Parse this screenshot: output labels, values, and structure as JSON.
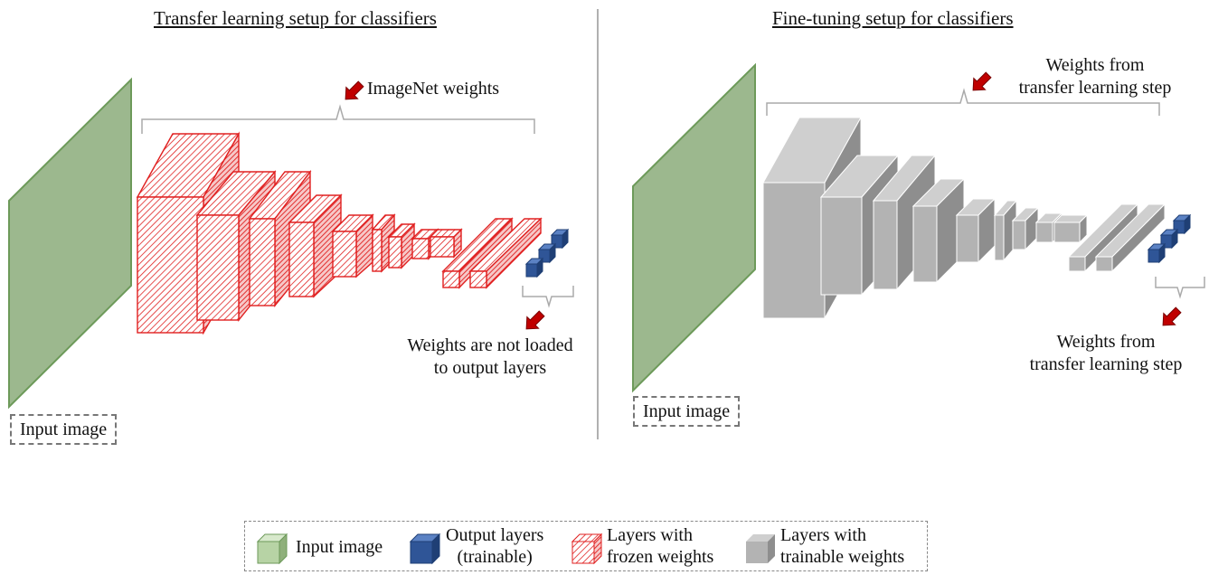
{
  "left_panel": {
    "title": "Transfer learning setup for classifiers",
    "input_label": "Input image",
    "bracket_top_label": "ImageNet weights",
    "output_note": [
      "Weights are not loaded",
      "to output layers"
    ]
  },
  "right_panel": {
    "title": "Fine-tuning setup for classifiers",
    "input_label": "Input image",
    "bracket_top_label": [
      "Weights from",
      "transfer learning step"
    ],
    "output_note": [
      "Weights from",
      "transfer learning step"
    ]
  },
  "legend": {
    "items": [
      {
        "label": [
          "Input image"
        ],
        "swatch": "green"
      },
      {
        "label": [
          "Output layers",
          "(trainable)"
        ],
        "swatch": "blue"
      },
      {
        "label": [
          "Layers with",
          "frozen weights"
        ],
        "swatch": "red-hatched"
      },
      {
        "label": [
          "Layers with",
          "trainable weights"
        ],
        "swatch": "gray"
      }
    ]
  },
  "colors": {
    "input_face": "#9cb88e",
    "input_edge": "#6d9a5a",
    "red": "#e02020",
    "gray_front": "#b3b3b3",
    "gray_top": "#cfcfcf",
    "gray_side": "#8e8e8e",
    "blue": "#2f5597",
    "blue_top": "#5b82c4",
    "arrow": "#c00000",
    "divider": "#b0b0b0"
  }
}
